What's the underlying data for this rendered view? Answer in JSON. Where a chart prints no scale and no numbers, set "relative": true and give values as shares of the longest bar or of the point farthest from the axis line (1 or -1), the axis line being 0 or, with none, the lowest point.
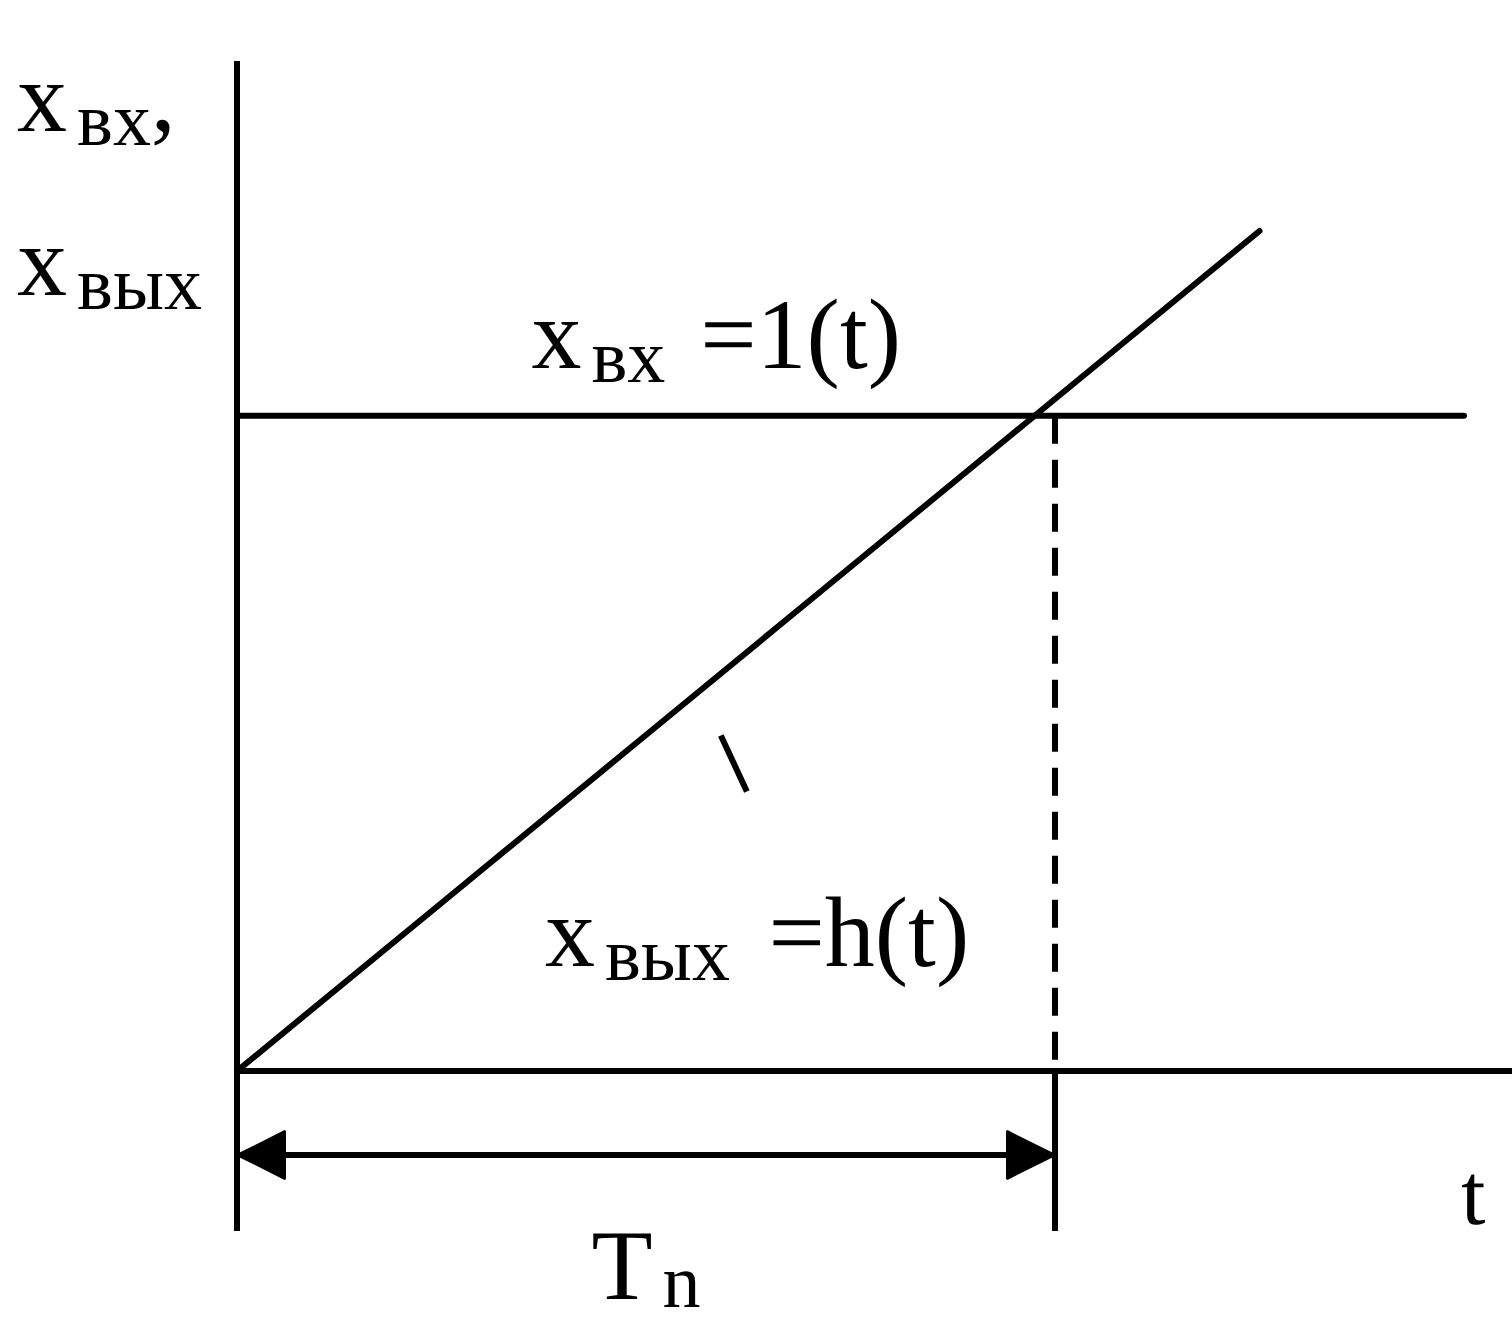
{
  "chart_data": {
    "type": "line",
    "relative": true,
    "categories": [
      null,
      null,
      null,
      null,
      null,
      null,
      null
    ],
    "xlabel": "t",
    "ylabel": "x$_{вх}$,\nx$_{вых}$",
    "series": [
      {
        "name": "x$_{вх}$ =1(t)",
        "color": "#000000",
        "values": [
          0.78,
          0.78,
          0.78,
          0.78,
          0.78,
          0.78,
          0.78
        ]
      },
      {
        "name": "x$_{вых}$ =h(t)",
        "color": "#000000",
        "values": [
          0,
          0.2,
          0.4,
          0.6,
          0.8,
          1.0,
          null
        ]
      }
    ],
    "annotations": [
      "T$_{n}$"
    ]
  }
}
